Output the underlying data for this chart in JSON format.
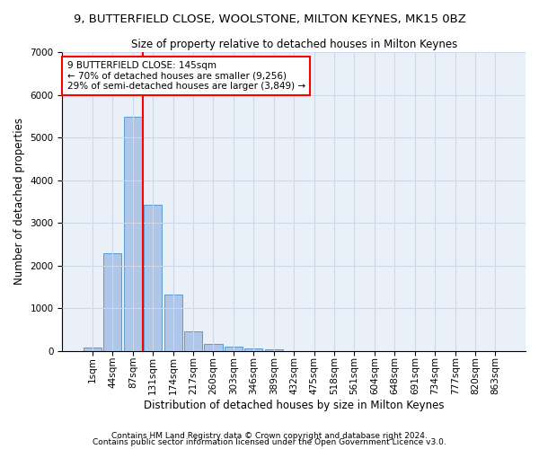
{
  "title": "9, BUTTERFIELD CLOSE, WOOLSTONE, MILTON KEYNES, MK15 0BZ",
  "subtitle": "Size of property relative to detached houses in Milton Keynes",
  "xlabel": "Distribution of detached houses by size in Milton Keynes",
  "ylabel": "Number of detached properties",
  "footnote1": "Contains HM Land Registry data © Crown copyright and database right 2024.",
  "footnote2": "Contains public sector information licensed under the Open Government Licence v3.0.",
  "bar_labels": [
    "1sqm",
    "44sqm",
    "87sqm",
    "131sqm",
    "174sqm",
    "217sqm",
    "260sqm",
    "303sqm",
    "346sqm",
    "389sqm",
    "432sqm",
    "475sqm",
    "518sqm",
    "561sqm",
    "604sqm",
    "648sqm",
    "691sqm",
    "734sqm",
    "777sqm",
    "820sqm",
    "863sqm"
  ],
  "bar_values": [
    70,
    2280,
    5480,
    3430,
    1310,
    460,
    165,
    90,
    55,
    35,
    0,
    0,
    0,
    0,
    0,
    0,
    0,
    0,
    0,
    0,
    0
  ],
  "bar_color": "#aec6e8",
  "bar_edgecolor": "#5b9bd5",
  "grid_color": "#d0d8e8",
  "background_color": "#eaf0f8",
  "vline_color": "red",
  "annotation_text": "9 BUTTERFIELD CLOSE: 145sqm\n← 70% of detached houses are smaller (9,256)\n29% of semi-detached houses are larger (3,849) →",
  "annotation_box_color": "white",
  "annotation_box_edgecolor": "red",
  "ylim": [
    0,
    7000
  ],
  "yticks": [
    0,
    1000,
    2000,
    3000,
    4000,
    5000,
    6000,
    7000
  ],
  "title_fontsize": 9.5,
  "subtitle_fontsize": 8.5,
  "xlabel_fontsize": 8.5,
  "ylabel_fontsize": 8.5,
  "tick_fontsize": 7.5,
  "annotation_fontsize": 7.5,
  "footnote_fontsize": 6.5
}
